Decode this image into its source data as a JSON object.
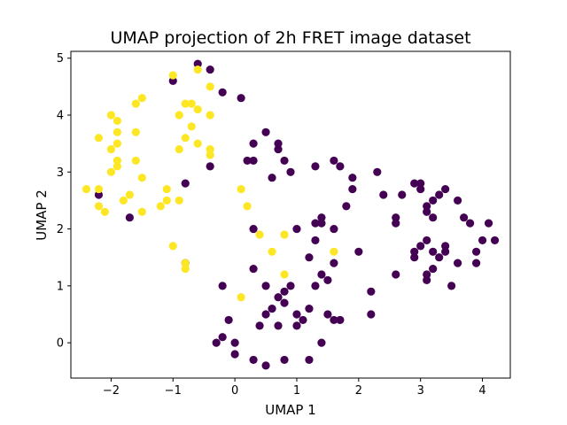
{
  "chart_data": {
    "type": "scatter",
    "title": "UMAP projection of 2h FRET image dataset",
    "xlabel": "UMAP 1",
    "ylabel": "UMAP 2",
    "xlim": [
      -2.65,
      4.45
    ],
    "ylim": [
      -0.62,
      5.12
    ],
    "xticks": [
      -2,
      -1,
      0,
      1,
      2,
      3,
      4
    ],
    "yticks": [
      0,
      1,
      2,
      3,
      4,
      5
    ],
    "grid": false,
    "legend": "none",
    "colors": {
      "purple": "#440154",
      "yellow": "#fde725"
    },
    "series": [
      {
        "color": "purple",
        "points": [
          [
            -0.6,
            4.9
          ],
          [
            -0.4,
            4.8
          ],
          [
            -0.2,
            4.4
          ],
          [
            0.1,
            4.3
          ],
          [
            -1.0,
            4.6
          ],
          [
            -1.7,
            2.2
          ],
          [
            -2.2,
            2.6
          ],
          [
            -0.8,
            2.8
          ],
          [
            -0.4,
            3.1
          ],
          [
            -0.8,
            1.4
          ],
          [
            0.3,
            3.5
          ],
          [
            0.5,
            3.7
          ],
          [
            0.7,
            3.5
          ],
          [
            0.7,
            3.4
          ],
          [
            0.2,
            3.2
          ],
          [
            0.3,
            3.2
          ],
          [
            0.6,
            2.9
          ],
          [
            0.8,
            3.2
          ],
          [
            0.9,
            3.0
          ],
          [
            1.3,
            3.1
          ],
          [
            1.6,
            3.2
          ],
          [
            1.7,
            3.1
          ],
          [
            1.9,
            2.9
          ],
          [
            1.9,
            2.7
          ],
          [
            1.8,
            2.4
          ],
          [
            1.4,
            2.2
          ],
          [
            1.3,
            2.1
          ],
          [
            1.4,
            2.1
          ],
          [
            1.0,
            2.0
          ],
          [
            1.3,
            1.8
          ],
          [
            1.6,
            2.0
          ],
          [
            2.0,
            1.6
          ],
          [
            1.2,
            1.5
          ],
          [
            1.6,
            1.4
          ],
          [
            1.4,
            1.2
          ],
          [
            1.5,
            1.1
          ],
          [
            1.3,
            1.0
          ],
          [
            0.3,
            1.3
          ],
          [
            0.3,
            2.0
          ],
          [
            -0.2,
            1.0
          ],
          [
            0.5,
            1.0
          ],
          [
            0.9,
            1.0
          ],
          [
            0.8,
            0.9
          ],
          [
            0.7,
            0.8
          ],
          [
            0.8,
            0.7
          ],
          [
            0.6,
            0.6
          ],
          [
            0.5,
            0.5
          ],
          [
            0.4,
            0.3
          ],
          [
            0.7,
            0.3
          ],
          [
            1.0,
            0.5
          ],
          [
            1.2,
            0.6
          ],
          [
            1.1,
            0.4
          ],
          [
            1.0,
            0.3
          ],
          [
            1.4,
            0.0
          ],
          [
            1.5,
            0.5
          ],
          [
            1.6,
            0.4
          ],
          [
            1.7,
            0.4
          ],
          [
            -0.1,
            0.4
          ],
          [
            -0.3,
            0.0
          ],
          [
            -0.2,
            0.1
          ],
          [
            0.0,
            0.0
          ],
          [
            0.0,
            -0.2
          ],
          [
            0.3,
            -0.3
          ],
          [
            0.5,
            -0.4
          ],
          [
            0.8,
            -0.3
          ],
          [
            1.2,
            -0.3
          ],
          [
            2.2,
            0.9
          ],
          [
            2.2,
            0.5
          ],
          [
            2.3,
            3.0
          ],
          [
            2.4,
            2.6
          ],
          [
            2.6,
            2.2
          ],
          [
            2.7,
            2.6
          ],
          [
            2.6,
            2.1
          ],
          [
            2.9,
            2.8
          ],
          [
            3.0,
            2.8
          ],
          [
            3.0,
            2.7
          ],
          [
            3.1,
            2.3
          ],
          [
            3.1,
            2.4
          ],
          [
            3.2,
            2.5
          ],
          [
            3.3,
            2.6
          ],
          [
            3.4,
            2.7
          ],
          [
            3.6,
            2.5
          ],
          [
            3.7,
            2.2
          ],
          [
            3.8,
            2.1
          ],
          [
            2.6,
            1.2
          ],
          [
            2.9,
            1.6
          ],
          [
            3.0,
            1.7
          ],
          [
            3.1,
            1.8
          ],
          [
            3.2,
            1.6
          ],
          [
            3.4,
            1.7
          ],
          [
            3.3,
            1.5
          ],
          [
            3.2,
            1.3
          ],
          [
            3.1,
            1.2
          ],
          [
            3.4,
            1.6
          ],
          [
            3.6,
            1.4
          ],
          [
            3.9,
            1.4
          ],
          [
            2.9,
            1.5
          ],
          [
            3.1,
            1.1
          ],
          [
            3.5,
            1.0
          ],
          [
            3.9,
            1.6
          ],
          [
            4.0,
            1.8
          ],
          [
            4.1,
            2.1
          ],
          [
            4.2,
            1.8
          ],
          [
            3.2,
            2.2
          ]
        ]
      },
      {
        "color": "yellow",
        "points": [
          [
            -2.4,
            2.7
          ],
          [
            -2.2,
            2.7
          ],
          [
            -2.2,
            2.4
          ],
          [
            -2.1,
            2.3
          ],
          [
            -2.0,
            3.0
          ],
          [
            -2.0,
            3.4
          ],
          [
            -2.2,
            3.6
          ],
          [
            -1.9,
            3.1
          ],
          [
            -1.9,
            3.2
          ],
          [
            -1.9,
            3.5
          ],
          [
            -1.9,
            3.7
          ],
          [
            -1.9,
            3.9
          ],
          [
            -2.0,
            4.0
          ],
          [
            -1.8,
            2.5
          ],
          [
            -1.7,
            2.6
          ],
          [
            -1.6,
            3.2
          ],
          [
            -1.6,
            3.7
          ],
          [
            -1.5,
            2.9
          ],
          [
            -1.5,
            2.3
          ],
          [
            -1.6,
            4.2
          ],
          [
            -1.5,
            4.3
          ],
          [
            -1.2,
            2.4
          ],
          [
            -1.1,
            2.5
          ],
          [
            -1.1,
            2.7
          ],
          [
            -1.0,
            1.7
          ],
          [
            -0.9,
            2.5
          ],
          [
            -0.9,
            3.4
          ],
          [
            -0.8,
            3.6
          ],
          [
            -0.7,
            3.8
          ],
          [
            -0.9,
            4.0
          ],
          [
            -0.8,
            4.2
          ],
          [
            -0.7,
            4.2
          ],
          [
            -0.6,
            4.1
          ],
          [
            -0.4,
            4.0
          ],
          [
            -0.6,
            3.5
          ],
          [
            -0.4,
            3.4
          ],
          [
            -0.4,
            3.3
          ],
          [
            -0.4,
            4.5
          ],
          [
            -1.0,
            4.7
          ],
          [
            -0.6,
            4.8
          ],
          [
            -0.8,
            1.4
          ],
          [
            -0.8,
            1.3
          ],
          [
            0.1,
            2.7
          ],
          [
            0.2,
            2.4
          ],
          [
            0.4,
            1.9
          ],
          [
            0.6,
            1.6
          ],
          [
            0.8,
            1.9
          ],
          [
            0.8,
            1.2
          ],
          [
            0.1,
            0.8
          ],
          [
            1.6,
            1.6
          ]
        ]
      }
    ]
  }
}
